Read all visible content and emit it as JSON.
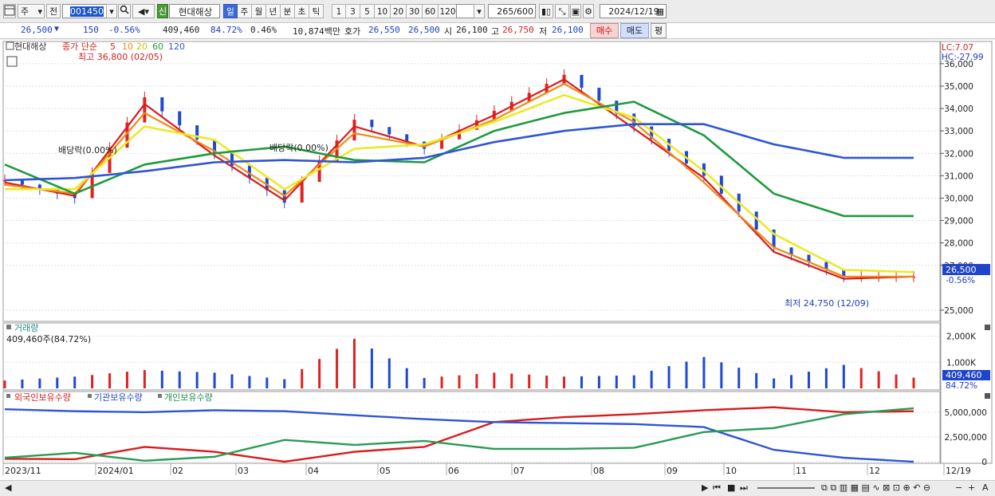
{
  "toolbar": {
    "period_type": "주",
    "prev": "전",
    "code": "001450",
    "stock_name": "현대해상",
    "name_badge": "신",
    "periods": [
      "일",
      "주",
      "월",
      "년",
      "분",
      "초",
      "틱"
    ],
    "active_period": "일",
    "intervals": [
      "1",
      "3",
      "5",
      "10",
      "20",
      "30",
      "60",
      "120"
    ],
    "count": "265",
    "count_total": "/600",
    "date": "2024/12/19"
  },
  "price_bar": {
    "price": "26,500",
    "down_arrow": "▼",
    "change": "150",
    "change_pct": "-0.56%",
    "volume": "409,460",
    "volume_ratio": "84.72%",
    "turnover_rate": "0.46%",
    "amount": "10,874백만",
    "quote_label": "호가",
    "ask": "26,550",
    "bid": "26,500",
    "open_label": "시",
    "open": "26,100",
    "high_label": "고",
    "high": "26,750",
    "low_label": "저",
    "low": "26,100",
    "buy_button": "매수",
    "sell_button": "매도",
    "eval_button": "평"
  },
  "main_panel": {
    "stock_label": "현대해상",
    "ma_label": "종가 단순",
    "ma_periods": [
      "5",
      "10",
      "20",
      "60",
      "120"
    ],
    "ma_colors": [
      "#d81c1c",
      "#f08a16",
      "#eaea28",
      "#1f9a3c",
      "#2f55d4"
    ],
    "lc_label": "LC:7.07",
    "hc_label": "HC:-27.99",
    "max_label": "최고 36,800 (02/05)",
    "min_label": "최저 24,750 (12/09)",
    "dividend_label_1": "배당락(0.00%)",
    "dividend_label_2": "배당락(0.00%)",
    "current_price_tag": "26,500",
    "current_pct_tag": "-0.56%",
    "y_ticks": [
      "36,000",
      "35,000",
      "34,000",
      "33,000",
      "32,000",
      "31,000",
      "30,000",
      "29,000",
      "28,000",
      "27,000",
      "25,000"
    ]
  },
  "volume_panel": {
    "title": "거래량",
    "info": "409,460주(84.72%)",
    "y_ticks": [
      "2,000K",
      "1,000K"
    ],
    "current_tag": "409,460",
    "current_pct": "84.72%"
  },
  "holding_panel": {
    "foreign": "외국인보유수량",
    "institution": "기관보유수량",
    "individual": "개인보유수량",
    "y_ticks": [
      "5,000,000",
      "2,500,000",
      "0"
    ]
  },
  "x_labels": [
    "2023/11",
    "2024/01",
    "02",
    "03",
    "04",
    "05",
    "06",
    "07",
    "08",
    "09",
    "10",
    "11",
    "12",
    "12/19"
  ],
  "chart_data": {
    "type": "line",
    "x": [
      "2023/11",
      "2024/01",
      "02",
      "03",
      "04",
      "05",
      "06",
      "07",
      "08",
      "09",
      "10",
      "11",
      "12",
      "12/19"
    ],
    "series": [
      {
        "name": "종가",
        "values": [
          30800,
          30000,
          34500,
          32000,
          29800,
          33500,
          32200,
          33900,
          35500,
          33200,
          31000,
          27800,
          26500,
          26500
        ]
      },
      {
        "name": "5",
        "values": [
          30700,
          30100,
          34200,
          31900,
          29900,
          33200,
          32300,
          33700,
          35300,
          33100,
          30900,
          27600,
          26400,
          26500
        ]
      },
      {
        "name": "10",
        "values": [
          30600,
          30200,
          33800,
          32100,
          30100,
          32900,
          32300,
          33500,
          35100,
          33400,
          30700,
          27800,
          26500,
          26500
        ]
      },
      {
        "name": "20",
        "values": [
          30400,
          30400,
          33200,
          32600,
          30400,
          32200,
          32400,
          33400,
          34600,
          33600,
          31200,
          28400,
          26800,
          26700
        ]
      },
      {
        "name": "60",
        "values": [
          31500,
          30200,
          31500,
          32000,
          32300,
          31700,
          31600,
          33000,
          33800,
          34300,
          32800,
          30200,
          29200,
          29200
        ]
      },
      {
        "name": "120",
        "values": [
          30800,
          30900,
          31200,
          31600,
          31700,
          31600,
          31800,
          32500,
          33000,
          33300,
          33300,
          32400,
          31800,
          31800
        ]
      },
      {
        "name": "거래량",
        "values": [
          300,
          450,
          700,
          600,
          350,
          1900,
          400,
          600,
          450,
          500,
          1200,
          380,
          900,
          409
        ]
      },
      {
        "name": "외국인보유수량",
        "values": [
          300000,
          250000,
          1500000,
          1000000,
          0,
          1000000,
          1500000,
          4000000,
          4500000,
          4800000,
          5200000,
          5500000,
          5000000,
          5100000
        ]
      },
      {
        "name": "기관보유수량",
        "values": [
          5300000,
          5100000,
          5000000,
          5200000,
          5100000,
          4700000,
          4300000,
          4000000,
          3900000,
          3800000,
          3500000,
          1200000,
          400000,
          0
        ]
      },
      {
        "name": "개인보유수량",
        "values": [
          400000,
          900000,
          100000,
          500000,
          2200000,
          1700000,
          2100000,
          1300000,
          1300000,
          1400000,
          3000000,
          3400000,
          4800000,
          5400000
        ]
      }
    ],
    "ylim": [
      24500,
      36600
    ]
  }
}
